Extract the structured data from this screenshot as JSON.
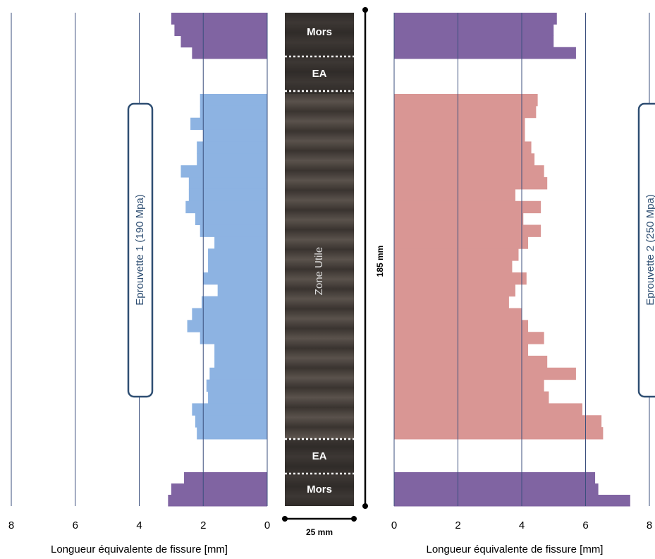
{
  "chart_data": [
    {
      "type": "bar",
      "orientation": "horizontal",
      "reversed": true,
      "xlabel": "Longueur équivalente de fissure [mm]",
      "annotation": "Eprouvette 1 (190 Mpa)",
      "xlim": [
        0,
        8
      ],
      "xticks": [
        0,
        2,
        4,
        6,
        8
      ],
      "grid": true,
      "series": [
        {
          "color": "#8064a2",
          "values": [
            3.0,
            2.9,
            2.7,
            2.35
          ]
        },
        {
          "color": "#8db3e2",
          "values": [
            2.1,
            2.1,
            2.4,
            2.0,
            2.2,
            2.2,
            2.7,
            2.45,
            2.45,
            2.55,
            2.25,
            2.1,
            1.65,
            1.85,
            1.85,
            2.0,
            1.55,
            2.05,
            2.35,
            2.5,
            2.1,
            1.65,
            1.65,
            1.8,
            1.9,
            1.85,
            2.35,
            2.25,
            2.2
          ]
        },
        {
          "color": "#8064a2",
          "values": [
            2.6,
            3.0,
            3.1
          ]
        }
      ]
    },
    {
      "type": "bar",
      "orientation": "horizontal",
      "reversed": false,
      "xlabel": "Longueur équivalente de fissure [mm]",
      "annotation": "Eprouvette 2 (250 Mpa)",
      "xlim": [
        0,
        8
      ],
      "xticks": [
        0,
        2,
        4,
        6,
        8
      ],
      "grid": true,
      "series": [
        {
          "color": "#8064a2",
          "values": [
            5.1,
            5.0,
            5.0,
            5.7
          ]
        },
        {
          "color": "#d99694",
          "values": [
            4.5,
            4.45,
            4.1,
            4.1,
            4.3,
            4.4,
            4.7,
            4.8,
            3.8,
            4.6,
            4.05,
            4.6,
            4.2,
            3.9,
            3.7,
            4.15,
            3.8,
            3.6,
            4.0,
            4.2,
            4.7,
            4.2,
            4.8,
            5.7,
            4.7,
            4.85,
            5.9,
            6.5,
            6.55
          ]
        },
        {
          "color": "#8064a2",
          "values": [
            6.3,
            6.4,
            7.4
          ]
        }
      ]
    }
  ],
  "specimen": {
    "labels": [
      "Mors",
      "EA",
      "Zone Utile",
      "EA",
      "Mors"
    ],
    "length_label": "185 mm",
    "width_label": "25 mm"
  }
}
